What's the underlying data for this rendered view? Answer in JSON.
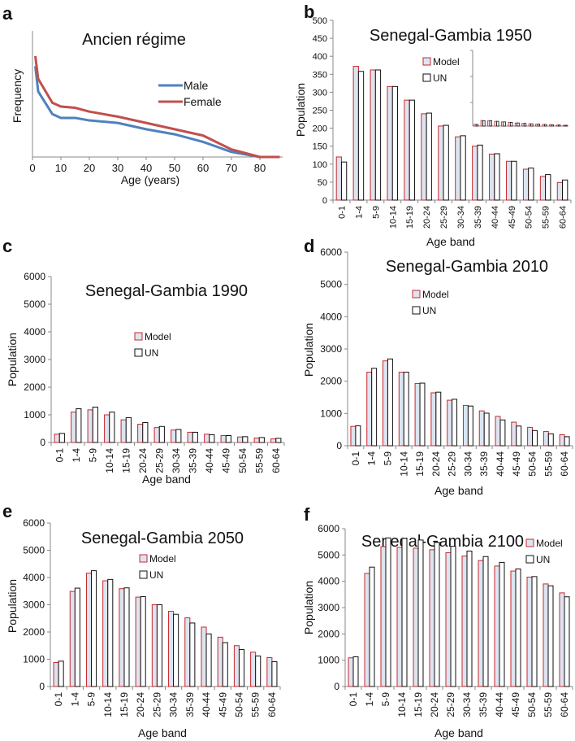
{
  "chart_data": [
    {
      "panel": "a",
      "type": "line",
      "title": "Ancien  régime",
      "xlabel": "Age (years)",
      "ylabel": "Frequency",
      "xlim": [
        0,
        87
      ],
      "xticks": [
        0,
        10,
        20,
        30,
        40,
        50,
        60,
        70,
        80
      ],
      "x": [
        1,
        2,
        7,
        10,
        15,
        20,
        30,
        40,
        50,
        60,
        70,
        80,
        87
      ],
      "series": [
        {
          "name": "Male",
          "color": "#4f81bd",
          "values": [
            72,
            52,
            34,
            31,
            31,
            29,
            27,
            22,
            18,
            12,
            4,
            0,
            0
          ]
        },
        {
          "name": "Female",
          "color": "#c0504d",
          "values": [
            80,
            62,
            43,
            40,
            39,
            36,
            32,
            27,
            22,
            17,
            6,
            0,
            0
          ]
        }
      ],
      "legend": "top-right"
    },
    {
      "panel": "b",
      "type": "bar",
      "title": "Senegal-Gambia 1950",
      "xlabel": "Age band",
      "ylabel": "Population",
      "ylim": [
        0,
        500
      ],
      "yticks": [
        0,
        50,
        100,
        150,
        200,
        250,
        300,
        350,
        400,
        450,
        500
      ],
      "categories": [
        "0-1",
        "1-4",
        "5-9",
        "10-14",
        "15-19",
        "20-24",
        "25-29",
        "30-34",
        "35-39",
        "40-44",
        "45-49",
        "50-54",
        "55-59",
        "60-64"
      ],
      "series": [
        {
          "name": "Model",
          "values": [
            120,
            372,
            362,
            316,
            278,
            240,
            206,
            176,
            150,
            128,
            108,
            86,
            66,
            49
          ]
        },
        {
          "name": "UN",
          "values": [
            106,
            358,
            362,
            316,
            278,
            242,
            208,
            179,
            153,
            129,
            108,
            89,
            71,
            56
          ]
        }
      ],
      "legend": "top-center"
    },
    {
      "panel": "c",
      "type": "bar",
      "title": "Senegal-Gambia 1990",
      "xlabel": "Age band",
      "ylabel": "Population",
      "ylim": [
        0,
        6000
      ],
      "yticks": [
        0,
        1000,
        2000,
        3000,
        4000,
        5000,
        6000
      ],
      "categories": [
        "0-1",
        "1-4",
        "5-9",
        "10-14",
        "15-19",
        "20-24",
        "25-29",
        "30-34",
        "35-39",
        "40-44",
        "45-49",
        "50-54",
        "55-59",
        "60-64"
      ],
      "series": [
        {
          "name": "Model",
          "values": [
            300,
            1100,
            1180,
            1000,
            820,
            660,
            540,
            450,
            370,
            300,
            250,
            200,
            160,
            130
          ]
        },
        {
          "name": "UN",
          "values": [
            330,
            1220,
            1280,
            1100,
            900,
            720,
            580,
            470,
            370,
            280,
            250,
            210,
            180,
            150
          ]
        }
      ],
      "legend": "center"
    },
    {
      "panel": "d",
      "type": "bar",
      "title": "Senegal-Gambia 2010",
      "xlabel": "Age band",
      "ylabel": "Population",
      "ylim": [
        0,
        6000
      ],
      "yticks": [
        0,
        1000,
        2000,
        3000,
        4000,
        5000,
        6000
      ],
      "categories": [
        "0-1",
        "1-4",
        "5-9",
        "10-14",
        "15-19",
        "20-24",
        "25-29",
        "30-34",
        "35-39",
        "40-44",
        "45-49",
        "50-54",
        "55-59",
        "60-64"
      ],
      "series": [
        {
          "name": "Model",
          "values": [
            600,
            2280,
            2630,
            2280,
            1930,
            1640,
            1410,
            1250,
            1080,
            910,
            730,
            570,
            440,
            340
          ]
        },
        {
          "name": "UN",
          "values": [
            620,
            2400,
            2690,
            2280,
            1940,
            1660,
            1440,
            1230,
            1010,
            800,
            610,
            470,
            370,
            280
          ]
        }
      ],
      "legend": "top-center"
    },
    {
      "panel": "e",
      "type": "bar",
      "title": "Senegal-Gambia 2050",
      "xlabel": "Age band",
      "ylabel": "Population",
      "ylim": [
        0,
        6000
      ],
      "yticks": [
        0,
        1000,
        2000,
        3000,
        4000,
        5000,
        6000
      ],
      "categories": [
        "0-1",
        "1-4",
        "5-9",
        "10-14",
        "15-19",
        "20-24",
        "25-29",
        "30-34",
        "35-39",
        "40-44",
        "45-49",
        "50-54",
        "55-59",
        "60-64"
      ],
      "series": [
        {
          "name": "Model",
          "values": [
            880,
            3490,
            4160,
            3880,
            3590,
            3280,
            3000,
            2760,
            2520,
            2180,
            1810,
            1500,
            1260,
            1060
          ]
        },
        {
          "name": "UN",
          "values": [
            930,
            3610,
            4250,
            3930,
            3620,
            3300,
            3000,
            2650,
            2330,
            1930,
            1610,
            1360,
            1120,
            910
          ]
        }
      ],
      "legend": "top-center"
    },
    {
      "panel": "f",
      "type": "bar",
      "title": "Senegal-Gambia 2100",
      "xlabel": "Age band",
      "ylabel": "Population",
      "ylim": [
        0,
        6000
      ],
      "yticks": [
        0,
        1000,
        2000,
        3000,
        4000,
        5000,
        6000
      ],
      "categories": [
        "0-1",
        "1-4",
        "5-9",
        "10-14",
        "15-19",
        "20-24",
        "25-29",
        "30-34",
        "35-39",
        "40-44",
        "45-49",
        "50-54",
        "55-59",
        "60-64"
      ],
      "series": [
        {
          "name": "Model",
          "values": [
            1090,
            4300,
            5320,
            5290,
            5260,
            5200,
            5090,
            4960,
            4790,
            4580,
            4390,
            4160,
            3900,
            3560
          ]
        },
        {
          "name": "UN",
          "values": [
            1130,
            4540,
            5650,
            5630,
            5570,
            5480,
            5330,
            5150,
            4940,
            4720,
            4470,
            4180,
            3830,
            3410
          ]
        }
      ],
      "legend": "top-right"
    }
  ],
  "colors": {
    "model_fill": "#dce4f0",
    "model_stroke": "#c8282e",
    "un_fill": "#ffffff",
    "un_stroke": "#111111",
    "axis": "#888888"
  }
}
